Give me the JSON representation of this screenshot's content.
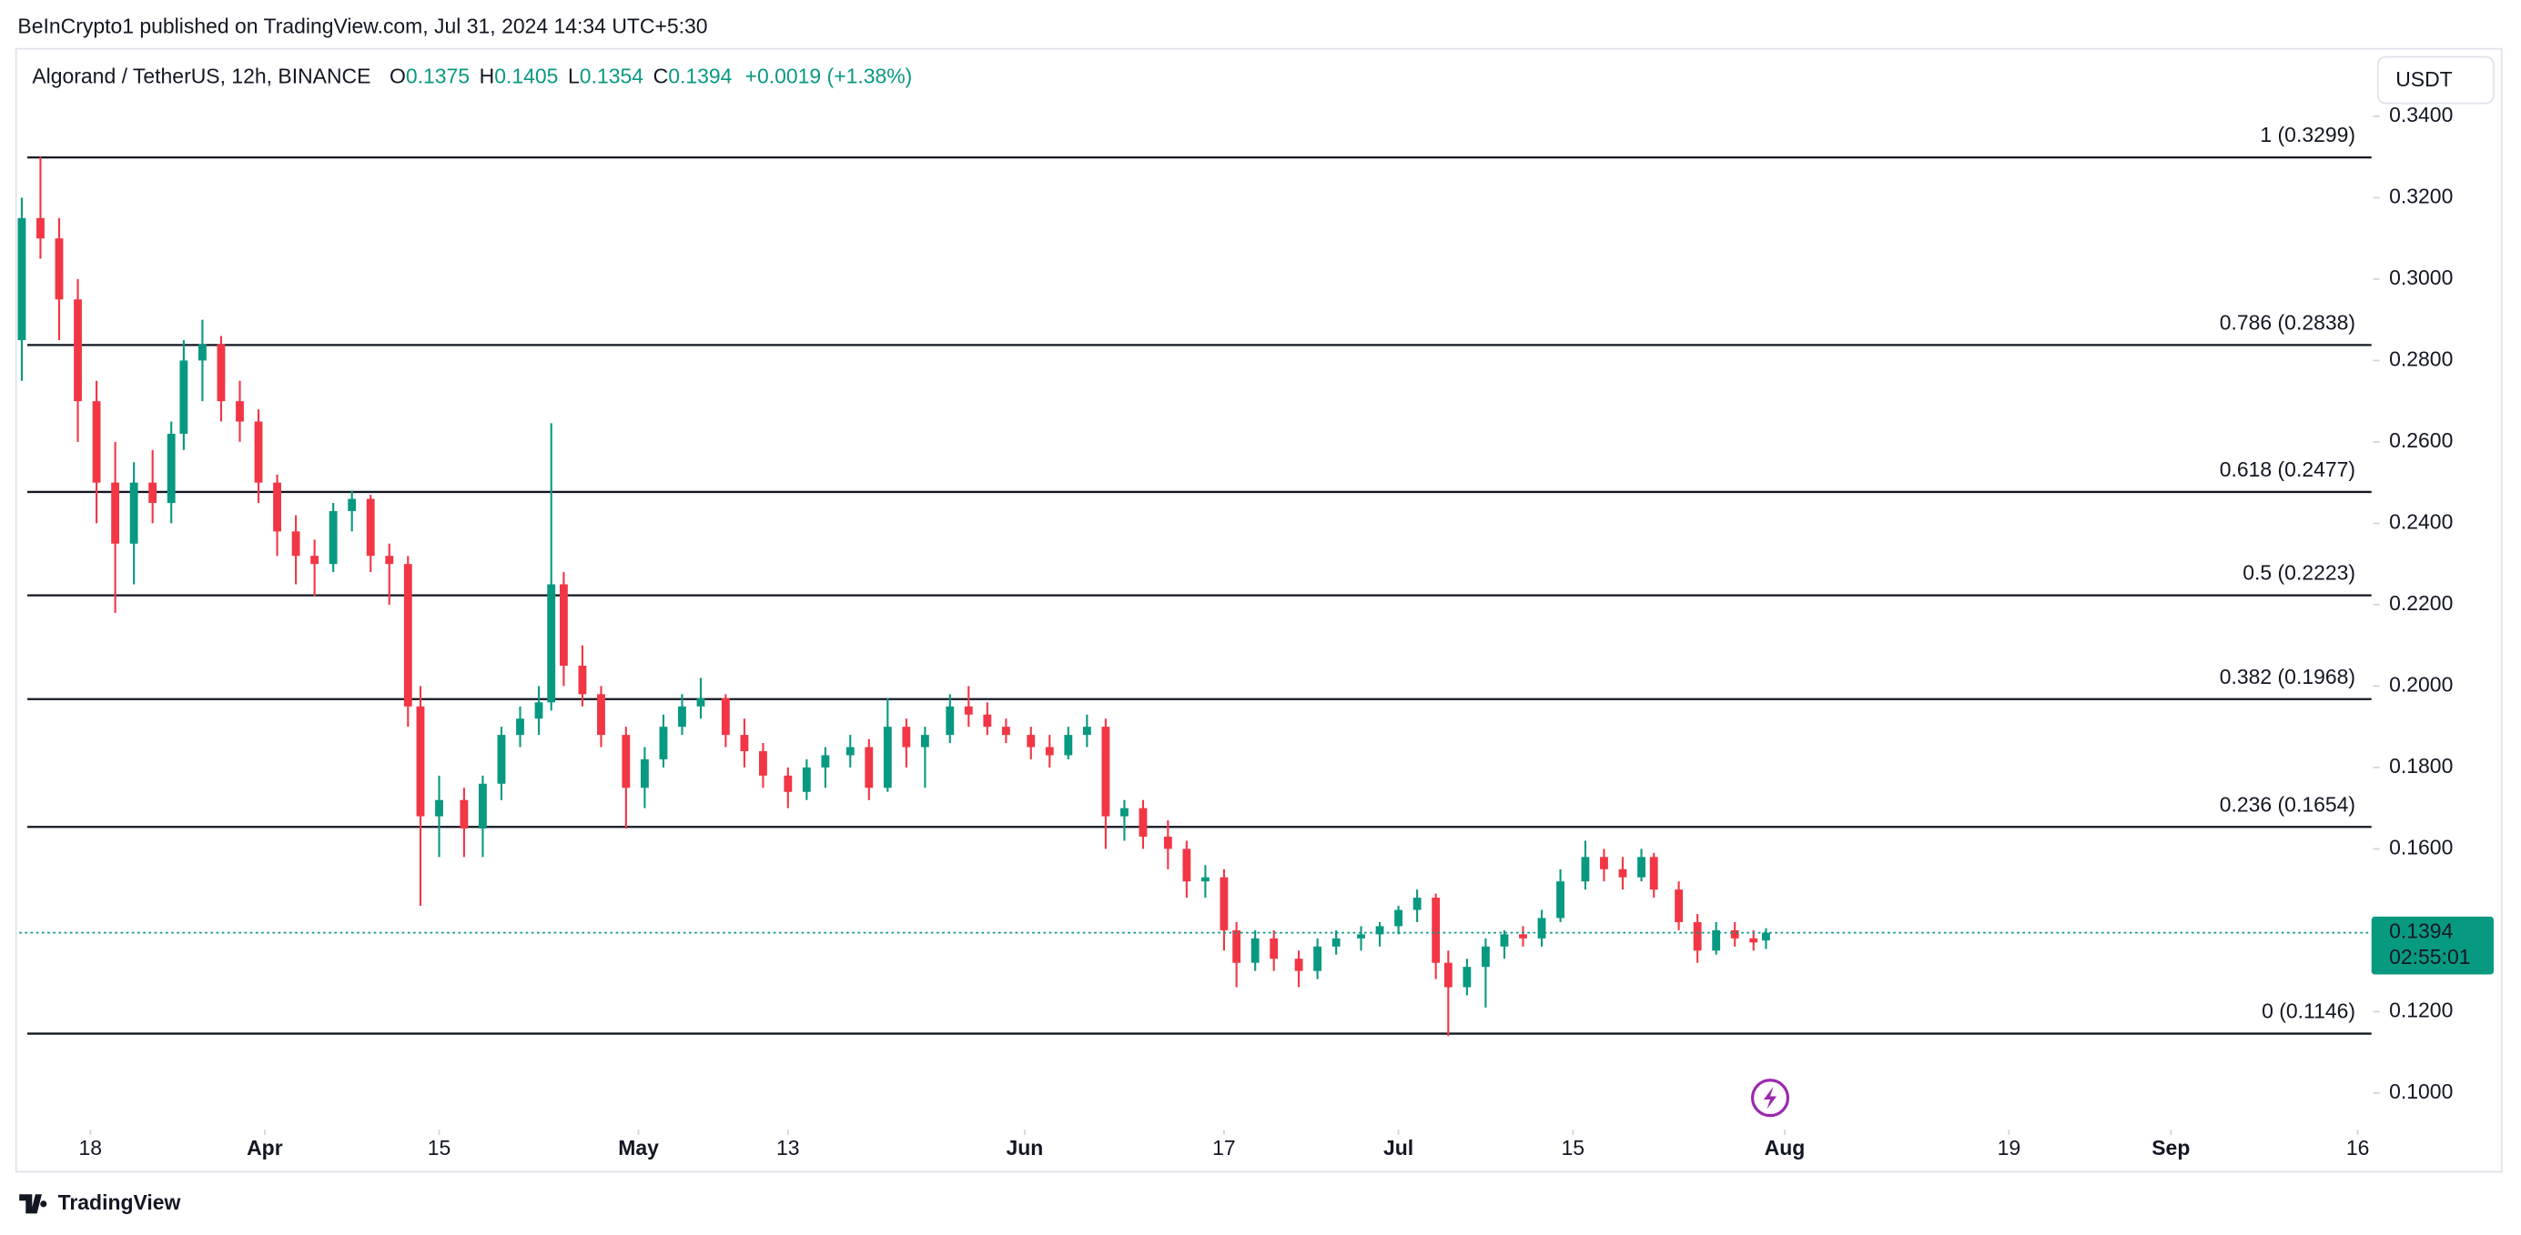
{
  "chart_data": {
    "type": "candlestick",
    "attribution": "BeInCrypto1 published on TradingView.com, Jul 31, 2024 14:34 UTC+5:30",
    "title": "Algorand / TetherUS, 12h, BINANCE",
    "ohlc_legend": [
      {
        "key": "O",
        "value": "0.1375"
      },
      {
        "key": "H",
        "value": "0.1405"
      },
      {
        "key": "L",
        "value": "0.1354"
      },
      {
        "key": "C",
        "value": "0.1394"
      }
    ],
    "change": "+0.0019 (+1.38%)",
    "currency": "USDT",
    "brand": "TradingView",
    "up_color": "#089981",
    "down_color": "#f23645",
    "xlim": [
      72.3,
      261.1
    ],
    "xticks": [
      {
        "value": 78,
        "label": "18"
      },
      {
        "value": 92,
        "label": "Apr"
      },
      {
        "value": 106,
        "label": "15"
      },
      {
        "value": 122,
        "label": "May"
      },
      {
        "value": 134,
        "label": "13"
      },
      {
        "value": 153,
        "label": "Jun"
      },
      {
        "value": 169,
        "label": "17"
      },
      {
        "value": 183,
        "label": "Jul"
      },
      {
        "value": 197,
        "label": "15"
      },
      {
        "value": 214,
        "label": "Aug"
      },
      {
        "value": 232,
        "label": "19"
      },
      {
        "value": 245,
        "label": "Sep"
      },
      {
        "value": 260,
        "label": "16"
      }
    ],
    "ylim": [
      0.0921,
      0.3566
    ],
    "yticks": [
      {
        "value": 0.1,
        "label": "0.1000"
      },
      {
        "value": 0.12,
        "label": "0.1200"
      },
      {
        "value": 0.14,
        "label": "0.1400"
      },
      {
        "value": 0.16,
        "label": "0.1600"
      },
      {
        "value": 0.18,
        "label": "0.1800"
      },
      {
        "value": 0.2,
        "label": "0.2000"
      },
      {
        "value": 0.22,
        "label": "0.2200"
      },
      {
        "value": 0.24,
        "label": "0.2400"
      },
      {
        "value": 0.26,
        "label": "0.2600"
      },
      {
        "value": 0.28,
        "label": "0.2800"
      },
      {
        "value": 0.3,
        "label": "0.3000"
      },
      {
        "value": 0.32,
        "label": "0.3200"
      },
      {
        "value": 0.34,
        "label": "0.3400"
      }
    ],
    "fib_levels": [
      {
        "value": 0.3299,
        "label": "1 (0.3299)"
      },
      {
        "value": 0.2838,
        "label": "0.786 (0.2838)"
      },
      {
        "value": 0.2477,
        "label": "0.618 (0.2477)"
      },
      {
        "value": 0.2223,
        "label": "0.5 (0.2223)"
      },
      {
        "value": 0.1968,
        "label": "0.382 (0.1968)"
      },
      {
        "value": 0.1654,
        "label": "0.236 (0.1654)"
      },
      {
        "value": 0.1146,
        "label": "0 (0.1146)"
      }
    ],
    "last_price": {
      "value": 0.1394,
      "label": "0.1394",
      "countdown": "02:55:01"
    },
    "candles": [
      {
        "x": 72.5,
        "open": 0.285,
        "high": 0.32,
        "low": 0.275,
        "close": 0.315
      },
      {
        "x": 74,
        "open": 0.315,
        "high": 0.33,
        "low": 0.305,
        "close": 0.31
      },
      {
        "x": 75.5,
        "open": 0.31,
        "high": 0.315,
        "low": 0.285,
        "close": 0.295
      },
      {
        "x": 77,
        "open": 0.295,
        "high": 0.3,
        "low": 0.26,
        "close": 0.27
      },
      {
        "x": 78.5,
        "open": 0.27,
        "high": 0.275,
        "low": 0.24,
        "close": 0.25
      },
      {
        "x": 80,
        "open": 0.25,
        "high": 0.26,
        "low": 0.218,
        "close": 0.235
      },
      {
        "x": 81.5,
        "open": 0.235,
        "high": 0.255,
        "low": 0.225,
        "close": 0.25
      },
      {
        "x": 83,
        "open": 0.25,
        "high": 0.258,
        "low": 0.24,
        "close": 0.245
      },
      {
        "x": 84.5,
        "open": 0.245,
        "high": 0.265,
        "low": 0.24,
        "close": 0.262
      },
      {
        "x": 85.5,
        "open": 0.262,
        "high": 0.285,
        "low": 0.258,
        "close": 0.28
      },
      {
        "x": 87,
        "open": 0.28,
        "high": 0.29,
        "low": 0.27,
        "close": 0.284
      },
      {
        "x": 88.5,
        "open": 0.284,
        "high": 0.286,
        "low": 0.265,
        "close": 0.27
      },
      {
        "x": 90,
        "open": 0.27,
        "high": 0.275,
        "low": 0.26,
        "close": 0.265
      },
      {
        "x": 91.5,
        "open": 0.265,
        "high": 0.268,
        "low": 0.245,
        "close": 0.25
      },
      {
        "x": 93,
        "open": 0.25,
        "high": 0.252,
        "low": 0.232,
        "close": 0.238
      },
      {
        "x": 94.5,
        "open": 0.238,
        "high": 0.242,
        "low": 0.225,
        "close": 0.232
      },
      {
        "x": 96,
        "open": 0.232,
        "high": 0.236,
        "low": 0.222,
        "close": 0.23
      },
      {
        "x": 97.5,
        "open": 0.23,
        "high": 0.245,
        "low": 0.228,
        "close": 0.243
      },
      {
        "x": 99,
        "open": 0.243,
        "high": 0.248,
        "low": 0.238,
        "close": 0.246
      },
      {
        "x": 100.5,
        "open": 0.246,
        "high": 0.247,
        "low": 0.228,
        "close": 0.232
      },
      {
        "x": 102,
        "open": 0.232,
        "high": 0.235,
        "low": 0.22,
        "close": 0.23
      },
      {
        "x": 103.5,
        "open": 0.23,
        "high": 0.232,
        "low": 0.19,
        "close": 0.195
      },
      {
        "x": 104.5,
        "open": 0.195,
        "high": 0.2,
        "low": 0.146,
        "close": 0.168
      },
      {
        "x": 106,
        "open": 0.168,
        "high": 0.178,
        "low": 0.158,
        "close": 0.172
      },
      {
        "x": 108,
        "open": 0.172,
        "high": 0.175,
        "low": 0.158,
        "close": 0.165
      },
      {
        "x": 109.5,
        "open": 0.165,
        "high": 0.178,
        "low": 0.158,
        "close": 0.176
      },
      {
        "x": 111,
        "open": 0.176,
        "high": 0.19,
        "low": 0.172,
        "close": 0.188
      },
      {
        "x": 112.5,
        "open": 0.188,
        "high": 0.195,
        "low": 0.185,
        "close": 0.192
      },
      {
        "x": 114,
        "open": 0.192,
        "high": 0.2,
        "low": 0.188,
        "close": 0.196
      },
      {
        "x": 115,
        "open": 0.196,
        "high": 0.2646,
        "low": 0.194,
        "close": 0.225
      },
      {
        "x": 116,
        "open": 0.225,
        "high": 0.228,
        "low": 0.2,
        "close": 0.205
      },
      {
        "x": 117.5,
        "open": 0.205,
        "high": 0.21,
        "low": 0.195,
        "close": 0.198
      },
      {
        "x": 119,
        "open": 0.198,
        "high": 0.2,
        "low": 0.185,
        "close": 0.188
      },
      {
        "x": 121,
        "open": 0.188,
        "high": 0.19,
        "low": 0.165,
        "close": 0.175
      },
      {
        "x": 122.5,
        "open": 0.175,
        "high": 0.185,
        "low": 0.17,
        "close": 0.182
      },
      {
        "x": 124,
        "open": 0.182,
        "high": 0.193,
        "low": 0.18,
        "close": 0.19
      },
      {
        "x": 125.5,
        "open": 0.19,
        "high": 0.198,
        "low": 0.188,
        "close": 0.195
      },
      {
        "x": 127,
        "open": 0.195,
        "high": 0.202,
        "low": 0.192,
        "close": 0.197
      },
      {
        "x": 129,
        "open": 0.197,
        "high": 0.198,
        "low": 0.185,
        "close": 0.188
      },
      {
        "x": 130.5,
        "open": 0.188,
        "high": 0.192,
        "low": 0.18,
        "close": 0.184
      },
      {
        "x": 132,
        "open": 0.184,
        "high": 0.186,
        "low": 0.175,
        "close": 0.178
      },
      {
        "x": 134,
        "open": 0.178,
        "high": 0.18,
        "low": 0.17,
        "close": 0.174
      },
      {
        "x": 135.5,
        "open": 0.174,
        "high": 0.182,
        "low": 0.172,
        "close": 0.18
      },
      {
        "x": 137,
        "open": 0.18,
        "high": 0.185,
        "low": 0.175,
        "close": 0.183
      },
      {
        "x": 139,
        "open": 0.183,
        "high": 0.188,
        "low": 0.18,
        "close": 0.185
      },
      {
        "x": 140.5,
        "open": 0.185,
        "high": 0.187,
        "low": 0.172,
        "close": 0.175
      },
      {
        "x": 142,
        "open": 0.175,
        "high": 0.197,
        "low": 0.174,
        "close": 0.19
      },
      {
        "x": 143.5,
        "open": 0.19,
        "high": 0.192,
        "low": 0.18,
        "close": 0.185
      },
      {
        "x": 145,
        "open": 0.185,
        "high": 0.19,
        "low": 0.175,
        "close": 0.188
      },
      {
        "x": 147,
        "open": 0.188,
        "high": 0.198,
        "low": 0.186,
        "close": 0.195
      },
      {
        "x": 148.5,
        "open": 0.195,
        "high": 0.2,
        "low": 0.19,
        "close": 0.193
      },
      {
        "x": 150,
        "open": 0.193,
        "high": 0.196,
        "low": 0.188,
        "close": 0.19
      },
      {
        "x": 151.5,
        "open": 0.19,
        "high": 0.192,
        "low": 0.186,
        "close": 0.188
      },
      {
        "x": 153.5,
        "open": 0.188,
        "high": 0.19,
        "low": 0.182,
        "close": 0.185
      },
      {
        "x": 155,
        "open": 0.185,
        "high": 0.188,
        "low": 0.18,
        "close": 0.183
      },
      {
        "x": 156.5,
        "open": 0.183,
        "high": 0.19,
        "low": 0.182,
        "close": 0.188
      },
      {
        "x": 158,
        "open": 0.188,
        "high": 0.193,
        "low": 0.185,
        "close": 0.19
      },
      {
        "x": 159.5,
        "open": 0.19,
        "high": 0.192,
        "low": 0.16,
        "close": 0.168
      },
      {
        "x": 161,
        "open": 0.168,
        "high": 0.172,
        "low": 0.162,
        "close": 0.17
      },
      {
        "x": 162.5,
        "open": 0.17,
        "high": 0.172,
        "low": 0.16,
        "close": 0.163
      },
      {
        "x": 164.5,
        "open": 0.163,
        "high": 0.167,
        "low": 0.155,
        "close": 0.16
      },
      {
        "x": 166,
        "open": 0.16,
        "high": 0.162,
        "low": 0.148,
        "close": 0.152
      },
      {
        "x": 167.5,
        "open": 0.152,
        "high": 0.156,
        "low": 0.148,
        "close": 0.153
      },
      {
        "x": 169,
        "open": 0.153,
        "high": 0.155,
        "low": 0.135,
        "close": 0.14
      },
      {
        "x": 170,
        "open": 0.14,
        "high": 0.142,
        "low": 0.126,
        "close": 0.132
      },
      {
        "x": 171.5,
        "open": 0.132,
        "high": 0.14,
        "low": 0.13,
        "close": 0.138
      },
      {
        "x": 173,
        "open": 0.138,
        "high": 0.14,
        "low": 0.13,
        "close": 0.133
      },
      {
        "x": 175,
        "open": 0.133,
        "high": 0.135,
        "low": 0.126,
        "close": 0.13
      },
      {
        "x": 176.5,
        "open": 0.13,
        "high": 0.138,
        "low": 0.128,
        "close": 0.136
      },
      {
        "x": 178,
        "open": 0.136,
        "high": 0.14,
        "low": 0.134,
        "close": 0.138
      },
      {
        "x": 180,
        "open": 0.138,
        "high": 0.141,
        "low": 0.135,
        "close": 0.139
      },
      {
        "x": 181.5,
        "open": 0.139,
        "high": 0.142,
        "low": 0.136,
        "close": 0.141
      },
      {
        "x": 183,
        "open": 0.141,
        "high": 0.146,
        "low": 0.139,
        "close": 0.145
      },
      {
        "x": 184.5,
        "open": 0.145,
        "high": 0.15,
        "low": 0.142,
        "close": 0.148
      },
      {
        "x": 186,
        "open": 0.148,
        "high": 0.149,
        "low": 0.128,
        "close": 0.132
      },
      {
        "x": 187,
        "open": 0.132,
        "high": 0.135,
        "low": 0.114,
        "close": 0.126
      },
      {
        "x": 188.5,
        "open": 0.126,
        "high": 0.133,
        "low": 0.124,
        "close": 0.131
      },
      {
        "x": 190,
        "open": 0.131,
        "high": 0.138,
        "low": 0.121,
        "close": 0.136
      },
      {
        "x": 191.5,
        "open": 0.136,
        "high": 0.14,
        "low": 0.133,
        "close": 0.139
      },
      {
        "x": 193,
        "open": 0.139,
        "high": 0.141,
        "low": 0.136,
        "close": 0.138
      },
      {
        "x": 194.5,
        "open": 0.138,
        "high": 0.145,
        "low": 0.136,
        "close": 0.143
      },
      {
        "x": 196,
        "open": 0.143,
        "high": 0.155,
        "low": 0.142,
        "close": 0.152
      },
      {
        "x": 198,
        "open": 0.152,
        "high": 0.162,
        "low": 0.15,
        "close": 0.158
      },
      {
        "x": 199.5,
        "open": 0.158,
        "high": 0.16,
        "low": 0.152,
        "close": 0.155
      },
      {
        "x": 201,
        "open": 0.155,
        "high": 0.158,
        "low": 0.15,
        "close": 0.153
      },
      {
        "x": 202.5,
        "open": 0.153,
        "high": 0.16,
        "low": 0.152,
        "close": 0.158
      },
      {
        "x": 203.5,
        "open": 0.158,
        "high": 0.159,
        "low": 0.148,
        "close": 0.15
      },
      {
        "x": 205.5,
        "open": 0.15,
        "high": 0.152,
        "low": 0.14,
        "close": 0.142
      },
      {
        "x": 207,
        "open": 0.142,
        "high": 0.144,
        "low": 0.132,
        "close": 0.135
      },
      {
        "x": 208.5,
        "open": 0.135,
        "high": 0.142,
        "low": 0.134,
        "close": 0.14
      },
      {
        "x": 210,
        "open": 0.14,
        "high": 0.142,
        "low": 0.136,
        "close": 0.138
      },
      {
        "x": 211.5,
        "open": 0.138,
        "high": 0.14,
        "low": 0.135,
        "close": 0.137
      },
      {
        "x": 212.5,
        "open": 0.1375,
        "high": 0.1405,
        "low": 0.1354,
        "close": 0.1394
      }
    ]
  }
}
